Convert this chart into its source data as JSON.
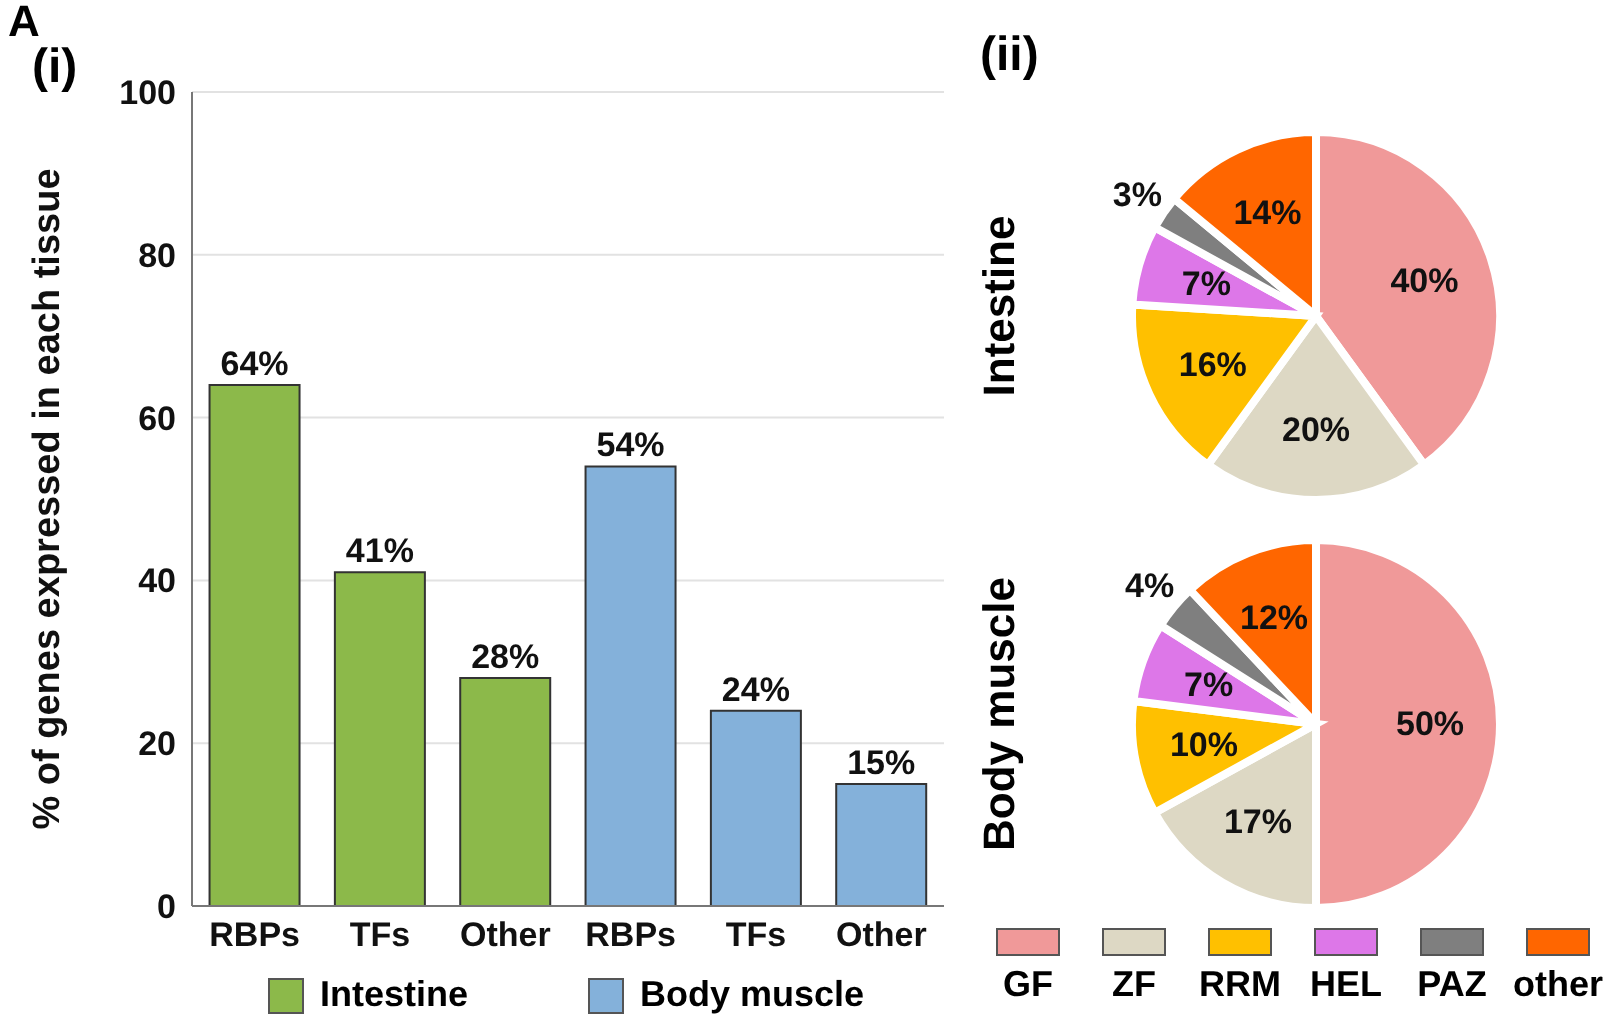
{
  "chart_data": [
    {
      "type": "bar",
      "ylabel": "% of genes expressed in each tissue",
      "annotations": [
        "A",
        "(i)"
      ],
      "categories": [
        "RBPs",
        "TFs",
        "Other",
        "RBPs",
        "TFs",
        "Other"
      ],
      "series": [
        {
          "name": "Intestine",
          "color": "#8cb94a",
          "values": [
            64,
            41,
            28,
            null,
            null,
            null
          ],
          "value_labels": [
            "64%",
            "41%",
            "28%",
            null,
            null,
            null
          ]
        },
        {
          "name": "Body muscle",
          "color": "#84b1da",
          "values": [
            null,
            null,
            null,
            54,
            24,
            15
          ],
          "value_labels": [
            null,
            null,
            null,
            "54%",
            "24%",
            "15%"
          ]
        }
      ],
      "ylim": [
        0,
        100
      ],
      "yticks": [
        0,
        20,
        40,
        60,
        80,
        100
      ],
      "grid": "y",
      "legend": "bottom"
    },
    {
      "type": "pie",
      "ylabel": "Intestine",
      "annotations": [
        "(ii)"
      ],
      "categories": [
        "GF",
        "ZF",
        "RRM",
        "HEL",
        "PAZ",
        "other"
      ],
      "values": [
        40,
        20,
        16,
        7,
        3,
        14
      ],
      "value_labels": [
        "40%",
        "20%",
        "16%",
        "7%",
        "3%",
        "14%"
      ],
      "colors": [
        "#f09999",
        "#ddd8c4",
        "#ffc000",
        "#dd77e8",
        "#7f7f7f",
        "#ff6600"
      ],
      "legend": "bottom"
    },
    {
      "type": "pie",
      "ylabel": "Body muscle",
      "categories": [
        null,
        null,
        null,
        null,
        null,
        null
      ],
      "values": [
        50,
        17,
        10,
        7,
        4,
        12
      ],
      "value_labels": [
        "50%",
        "17%",
        "10%",
        "7%",
        "4%",
        "12%"
      ],
      "colors": [
        "#f09999",
        "#ddd8c4",
        "#ffc000",
        "#dd77e8",
        "#7f7f7f",
        "#ff6600"
      ]
    }
  ]
}
